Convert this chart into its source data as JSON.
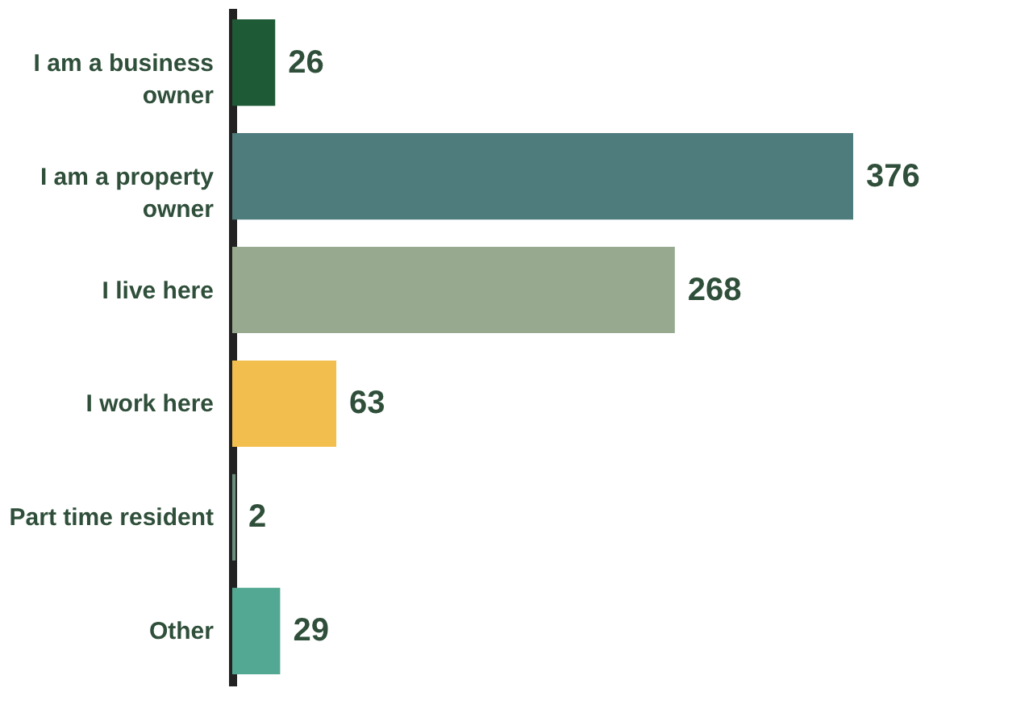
{
  "chart_data": {
    "type": "bar",
    "orientation": "horizontal",
    "data_labels": true,
    "grid": false,
    "categories": [
      "I am a business owner",
      "I am a property owner",
      "I live here",
      "I work here",
      "Part time resident",
      "Other"
    ],
    "values": [
      26,
      376,
      268,
      63,
      2,
      29
    ],
    "colors": [
      "#1f5a36",
      "#4e7b7b",
      "#97aa8f",
      "#f2bf4f",
      "#6a8f7d",
      "#52a892"
    ]
  }
}
